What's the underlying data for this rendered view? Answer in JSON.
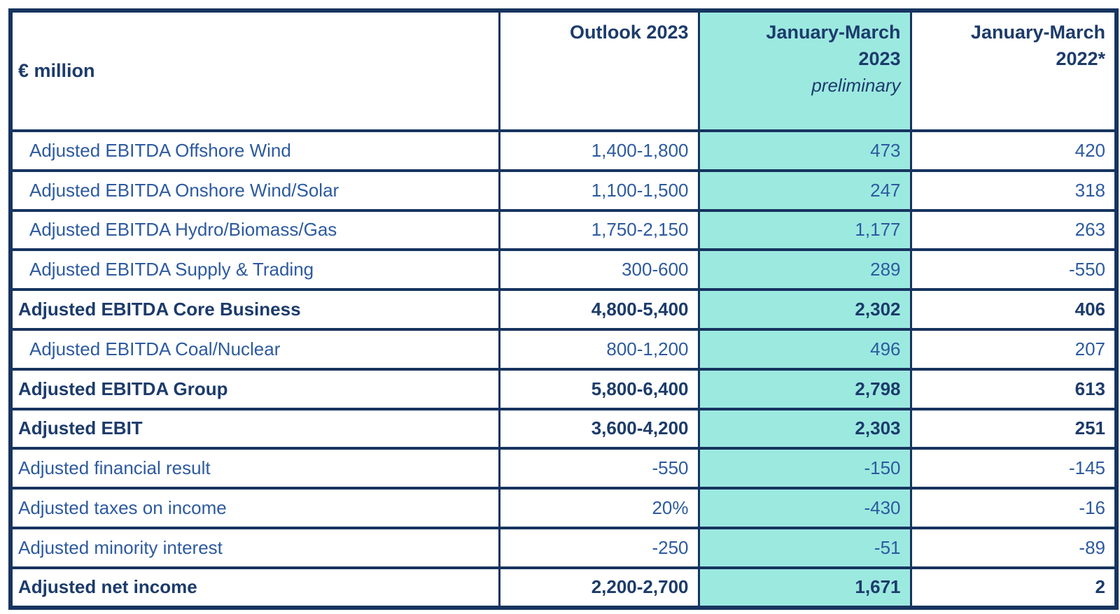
{
  "chart_data": {
    "type": "table",
    "unit_label": "€ million",
    "columns": [
      {
        "key": "outlook",
        "label": "Outlook 2023",
        "sublabel": "",
        "highlight": false
      },
      {
        "key": "q1_2023",
        "label": "January-March 2023",
        "sublabel": "preliminary",
        "highlight": true
      },
      {
        "key": "q1_2022",
        "label": "January-March 2022*",
        "sublabel": "",
        "highlight": false
      }
    ],
    "rows": [
      {
        "label": "Adjusted EBITDA Offshore Wind",
        "outlook": "1,400-1,800",
        "q1_2023": "473",
        "q1_2022": "420",
        "bold": false,
        "indent": true
      },
      {
        "label": "Adjusted EBITDA Onshore Wind/Solar",
        "outlook": "1,100-1,500",
        "q1_2023": "247",
        "q1_2022": "318",
        "bold": false,
        "indent": true
      },
      {
        "label": "Adjusted EBITDA Hydro/Biomass/Gas",
        "outlook": "1,750-2,150",
        "q1_2023": "1,177",
        "q1_2022": "263",
        "bold": false,
        "indent": true
      },
      {
        "label": "Adjusted EBITDA Supply & Trading",
        "outlook": "300-600",
        "q1_2023": "289",
        "q1_2022": "-550",
        "bold": false,
        "indent": true
      },
      {
        "label": "Adjusted EBITDA Core Business",
        "outlook": "4,800-5,400",
        "q1_2023": "2,302",
        "q1_2022": "406",
        "bold": true,
        "indent": false
      },
      {
        "label": "Adjusted EBITDA Coal/Nuclear",
        "outlook": "800-1,200",
        "q1_2023": "496",
        "q1_2022": "207",
        "bold": false,
        "indent": true
      },
      {
        "label": "Adjusted EBITDA Group",
        "outlook": "5,800-6,400",
        "q1_2023": "2,798",
        "q1_2022": "613",
        "bold": true,
        "indent": false
      },
      {
        "label": "Adjusted EBIT",
        "outlook": "3,600-4,200",
        "q1_2023": "2,303",
        "q1_2022": "251",
        "bold": true,
        "indent": false
      },
      {
        "label": "Adjusted financial result",
        "outlook": "-550",
        "q1_2023": "-150",
        "q1_2022": "-145",
        "bold": false,
        "indent": false
      },
      {
        "label": "Adjusted taxes on income",
        "outlook": "20%",
        "q1_2023": "-430",
        "q1_2022": "-16",
        "bold": false,
        "indent": false
      },
      {
        "label": "Adjusted minority interest",
        "outlook": "-250",
        "q1_2023": "-51",
        "q1_2022": "-89",
        "bold": false,
        "indent": false
      },
      {
        "label": "Adjusted net income",
        "outlook": "2,200-2,700",
        "q1_2023": "1,671",
        "q1_2022": "2",
        "bold": true,
        "indent": false
      }
    ]
  },
  "colors": {
    "border-navy": "#17345F",
    "header-text": "#1C3B6B",
    "row-text": "#2D5A9F",
    "bold-row-text": "#1C3B6B",
    "highlight-teal": "#9CE9E0",
    "background": "#FFFFFF"
  }
}
